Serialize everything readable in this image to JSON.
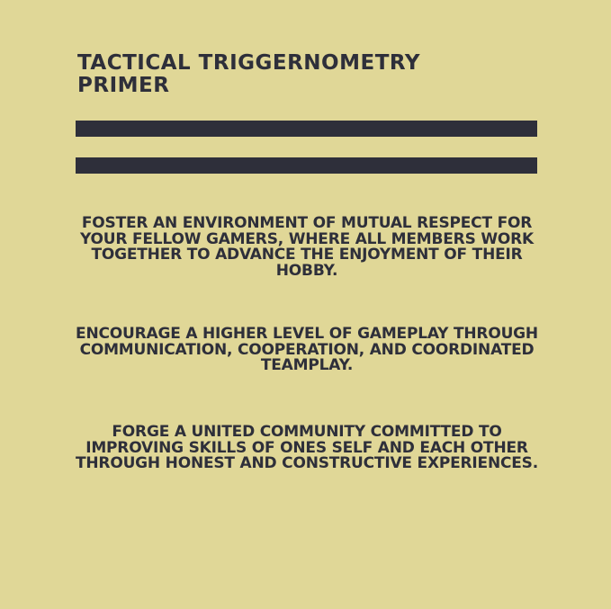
{
  "header": {
    "title": "TACTICAL TRIGGERNOMETRY PRIMER"
  },
  "content": {
    "paragraphs": [
      "FOSTER AN ENVIRONMENT OF MUTUAL RESPECT FOR YOUR FELLOW GAMERS, WHERE ALL MEMBERS WORK TOGETHER TO ADVANCE THE ENJOYMENT OF THEIR HOBBY.",
      "ENCOURAGE A HIGHER LEVEL OF GAMEPLAY THROUGH COMMUNICATION, COOPERATION, AND COORDINATED TEAMPLAY.",
      "FORGE A UNITED COMMUNITY COMMITTED TO IMPROVING SKILLS OF ONES SELF AND EACH OTHER THROUGH HONEST AND CONSTRUCTIVE EXPERIENCES."
    ]
  },
  "colors": {
    "background": "#e0d797",
    "ink": "#2e2f3a"
  }
}
